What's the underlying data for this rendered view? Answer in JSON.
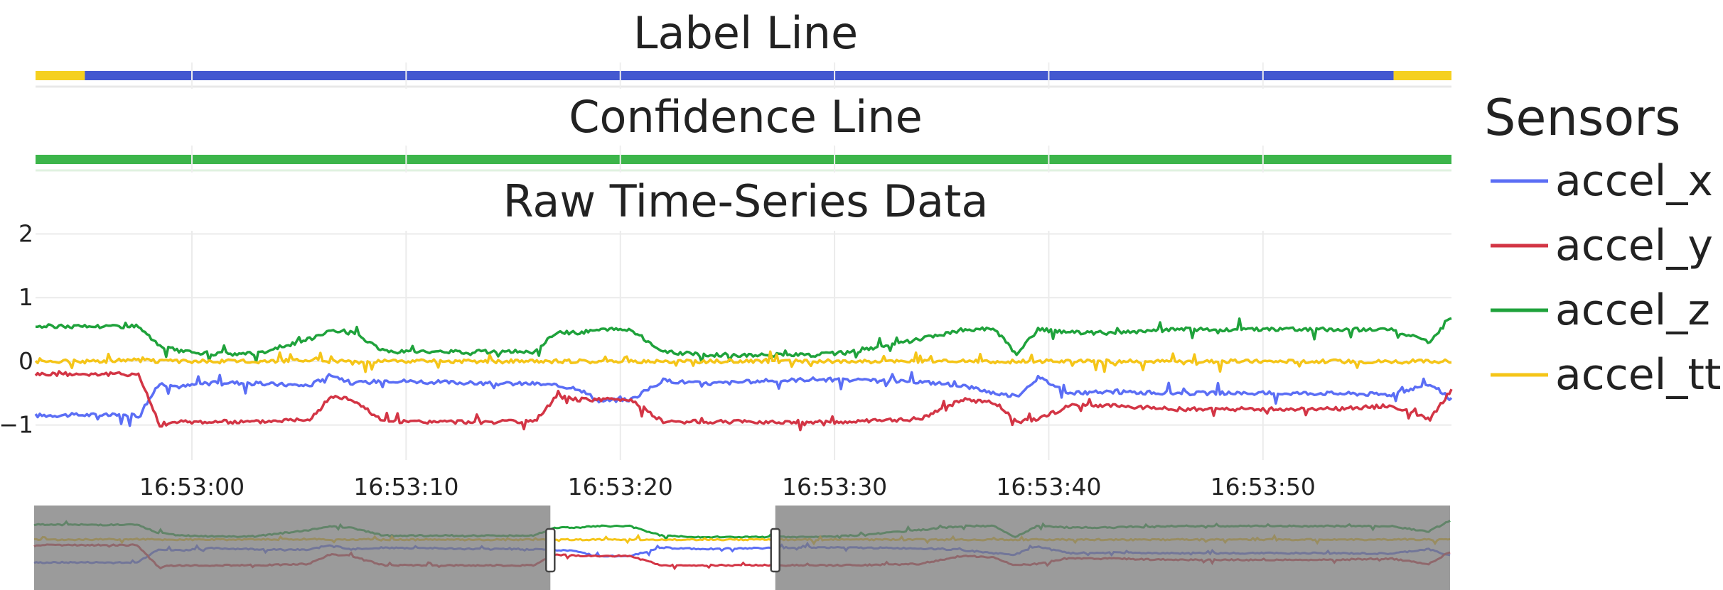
{
  "titles": {
    "label_line": "Label Line",
    "confidence_line": "Confidence Line",
    "raw": "Raw Time-Series Data"
  },
  "legend": {
    "title": "Sensors",
    "items": [
      {
        "name": "accel_x",
        "color": "#5b6ef5"
      },
      {
        "name": "accel_y",
        "color": "#d33545"
      },
      {
        "name": "accel_z",
        "color": "#1fa23b"
      },
      {
        "name": "accel_ttl",
        "color": "#f5c518"
      }
    ]
  },
  "chart_data": {
    "type": "line",
    "title": "Raw Time-Series Data",
    "x_time_range": [
      "16:52:52.7",
      "16:53:58.8"
    ],
    "x_ticks": [
      "16:53:00",
      "16:53:10",
      "16:53:20",
      "16:53:30",
      "16:53:40",
      "16:53:50"
    ],
    "x_tick_seconds": [
      60,
      70,
      80,
      90,
      100,
      110
    ],
    "y_ticks": [
      -1,
      0,
      1,
      2
    ],
    "ylim": [
      -1.55,
      2.05
    ],
    "grid": true,
    "legend_position": "right",
    "series": [
      {
        "name": "accel_x",
        "color": "#5b6ef5",
        "t": [
          52.7,
          55.0,
          57.5,
          58.5,
          59.5,
          61,
          63,
          65.5,
          66.5,
          67.5,
          69,
          71,
          74,
          76,
          78,
          79,
          80.5,
          82,
          84,
          86,
          89,
          91,
          94,
          96,
          97.5,
          98.5,
          99.5,
          101,
          103,
          106,
          110,
          113,
          116,
          117.8,
          118.8
        ],
        "v": [
          -0.85,
          -0.84,
          -0.85,
          -0.35,
          -0.4,
          -0.32,
          -0.35,
          -0.38,
          -0.2,
          -0.35,
          -0.3,
          -0.32,
          -0.35,
          -0.35,
          -0.42,
          -0.62,
          -0.6,
          -0.3,
          -0.35,
          -0.32,
          -0.28,
          -0.3,
          -0.32,
          -0.38,
          -0.5,
          -0.55,
          -0.25,
          -0.5,
          -0.48,
          -0.5,
          -0.5,
          -0.5,
          -0.52,
          -0.35,
          -0.6
        ]
      },
      {
        "name": "accel_y",
        "color": "#d33545",
        "t": [
          52.7,
          55.0,
          57.5,
          58.5,
          59.5,
          61,
          63,
          65.5,
          66.5,
          67.5,
          69,
          71,
          74,
          76,
          77,
          78,
          79,
          80.5,
          82,
          84,
          86,
          89,
          91,
          94,
          96,
          97.5,
          98.5,
          99.5,
          101,
          103,
          106,
          110,
          113,
          116,
          117.8,
          118.8
        ],
        "v": [
          -0.2,
          -0.2,
          -0.2,
          -1.0,
          -0.95,
          -0.95,
          -0.95,
          -0.9,
          -0.55,
          -0.6,
          -0.95,
          -0.95,
          -0.95,
          -0.95,
          -0.55,
          -0.6,
          -0.6,
          -0.6,
          -0.95,
          -0.95,
          -0.95,
          -0.95,
          -0.95,
          -0.9,
          -0.6,
          -0.65,
          -0.95,
          -0.9,
          -0.7,
          -0.7,
          -0.75,
          -0.75,
          -0.75,
          -0.7,
          -0.9,
          -0.45
        ]
      },
      {
        "name": "accel_z",
        "color": "#1fa23b",
        "t": [
          52.7,
          55.0,
          57.5,
          58.5,
          59.5,
          61,
          63,
          65.5,
          66.5,
          67.5,
          69,
          71,
          74,
          76,
          77,
          78,
          79,
          80.5,
          82,
          84,
          86,
          89,
          91,
          94,
          96,
          97.5,
          98.5,
          99.5,
          101,
          103,
          106,
          110,
          113,
          116,
          117.8,
          118.8
        ],
        "v": [
          0.55,
          0.55,
          0.55,
          0.25,
          0.15,
          0.12,
          0.12,
          0.35,
          0.5,
          0.45,
          0.15,
          0.15,
          0.15,
          0.15,
          0.45,
          0.45,
          0.5,
          0.5,
          0.15,
          0.1,
          0.1,
          0.1,
          0.15,
          0.35,
          0.5,
          0.5,
          0.1,
          0.5,
          0.45,
          0.45,
          0.5,
          0.5,
          0.5,
          0.5,
          0.3,
          0.7
        ]
      },
      {
        "name": "accel_ttl",
        "color": "#f5c518",
        "t": [
          52.7,
          55.0,
          57.5,
          58.5,
          59.5,
          61,
          63,
          65.5,
          66.5,
          67.5,
          69,
          71,
          74,
          76,
          78,
          80,
          82,
          84,
          86,
          89,
          91,
          94,
          96,
          98,
          99.5,
          101,
          103,
          106,
          110,
          113,
          116,
          117.8,
          118.8
        ],
        "v": [
          0.0,
          0.0,
          0.02,
          0.0,
          0.0,
          0.0,
          0.0,
          0.02,
          0.0,
          0.0,
          0.0,
          0.0,
          0.0,
          0.0,
          0.0,
          0.0,
          0.0,
          0.0,
          0.0,
          0.0,
          0.0,
          0.0,
          0.0,
          0.0,
          0.0,
          0.0,
          0.0,
          0.0,
          0.0,
          0.0,
          0.0,
          0.0,
          0.0
        ]
      }
    ],
    "label_line": {
      "segments": [
        {
          "start": 52.7,
          "end": 55.0,
          "color": "#f5d020"
        },
        {
          "start": 55.0,
          "end": 116.1,
          "color": "#4358d0"
        },
        {
          "start": 116.1,
          "end": 118.8,
          "color": "#f5d020"
        }
      ]
    },
    "confidence_line": {
      "segments": [
        {
          "start": 52.7,
          "end": 118.8,
          "color": "#3cb54a"
        }
      ]
    },
    "range_slider": {
      "selected": [
        76.8,
        87.3
      ],
      "total": [
        52.7,
        118.8
      ]
    }
  }
}
